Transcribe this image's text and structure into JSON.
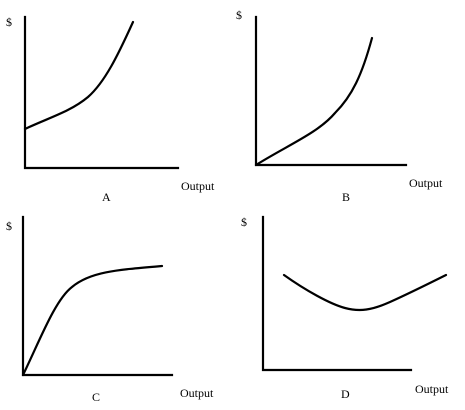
{
  "panels": [
    {
      "id": "A",
      "letter": "A",
      "y_label": "$",
      "x_label": "Output"
    },
    {
      "id": "B",
      "letter": "B",
      "y_label": "$",
      "x_label": "Output"
    },
    {
      "id": "C",
      "letter": "C",
      "y_label": "$",
      "x_label": "Output"
    },
    {
      "id": "D",
      "letter": "D",
      "y_label": "$",
      "x_label": "Output"
    }
  ]
}
